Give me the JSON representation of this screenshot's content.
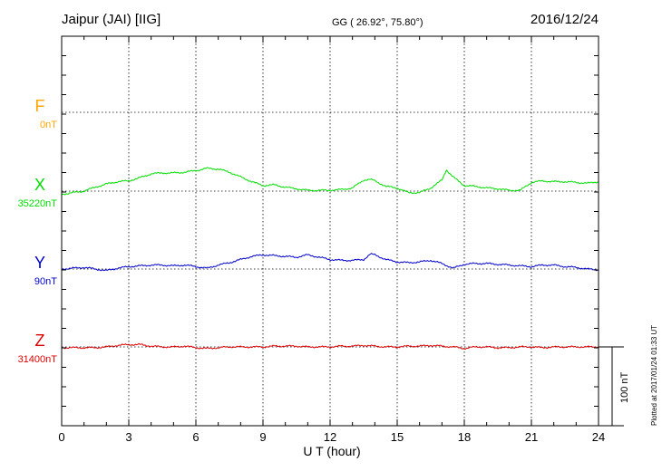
{
  "header": {
    "station": "Jaipur (JAI)  [IIG]",
    "coords": "GG ( 26.92°,  75.80°)",
    "date": "2016/12/24"
  },
  "footer": {
    "plotted": "Plotted at 2017/01/24 01:33 UT"
  },
  "scale_bar": {
    "label": "100 nT",
    "value_nT": 100
  },
  "chart_data": {
    "type": "line",
    "title": "Jaipur (JAI)  [IIG]",
    "xlabel": "U T (hour)",
    "xlim": [
      0,
      24
    ],
    "x_ticks": [
      0,
      3,
      6,
      9,
      12,
      15,
      18,
      21,
      24
    ],
    "x_tick_labels": [
      "0",
      "3",
      "6",
      "9",
      "12",
      "15",
      "18",
      "21",
      "24"
    ],
    "grid": true,
    "colors": {
      "F": "#ffa500",
      "X": "#00dd00",
      "Y": "#0000cc",
      "Z": "#dd0000"
    },
    "series": [
      {
        "name": "F",
        "baseline": "0nT",
        "baseline_nT": 0,
        "values": []
      },
      {
        "name": "X",
        "baseline": "35220nT",
        "baseline_nT": 35220,
        "x": [
          0,
          0.5,
          1,
          1.5,
          2,
          2.5,
          3,
          3.5,
          4,
          4.5,
          5,
          5.5,
          6,
          6.5,
          7,
          7.5,
          8,
          8.5,
          9,
          9.5,
          10,
          10.5,
          11,
          11.5,
          12,
          12.5,
          13,
          13.5,
          13.8,
          14,
          14.5,
          15,
          15.5,
          16,
          16.5,
          17,
          17.2,
          17.5,
          18,
          18.5,
          19,
          19.5,
          20,
          20.5,
          21,
          21.5,
          22,
          22.5,
          23,
          23.5,
          24
        ],
        "values": [
          -4,
          -2,
          0,
          5,
          9,
          12,
          13,
          17,
          22,
          23,
          23,
          24,
          26,
          29,
          28,
          24,
          18,
          12,
          7,
          8,
          5,
          3,
          1,
          1,
          1,
          2,
          4,
          14,
          15,
          13,
          6,
          4,
          -2,
          -2,
          4,
          14,
          27,
          18,
          7,
          6,
          4,
          3,
          1,
          1,
          11,
          13,
          12,
          12,
          11,
          10,
          12
        ]
      },
      {
        "name": "Y",
        "baseline": "90nT",
        "baseline_nT": 90,
        "x": [
          0,
          0.5,
          1,
          1.5,
          2,
          2.5,
          3,
          3.5,
          4,
          4.5,
          5,
          5.5,
          6,
          6.5,
          7,
          7.5,
          8,
          8.5,
          9,
          9.5,
          10,
          10.5,
          11,
          11.5,
          12,
          12.5,
          13,
          13.5,
          13.8,
          14,
          14.5,
          15,
          15.5,
          16,
          16.5,
          17,
          17.5,
          18,
          18.5,
          19,
          19.5,
          20,
          20.5,
          21,
          21.5,
          22,
          22.5,
          23,
          23.5,
          24
        ],
        "values": [
          0,
          1,
          2,
          0,
          -2,
          1,
          3,
          4,
          5,
          5,
          4,
          5,
          3,
          1,
          5,
          8,
          12,
          16,
          18,
          17,
          16,
          15,
          18,
          15,
          12,
          11,
          11,
          12,
          19,
          18,
          12,
          9,
          8,
          9,
          11,
          7,
          1,
          6,
          7,
          7,
          6,
          5,
          4,
          3,
          5,
          5,
          3,
          2,
          0,
          -1
        ]
      },
      {
        "name": "Z",
        "baseline": "31400nT",
        "baseline_nT": 31400,
        "x": [
          0,
          0.5,
          1,
          1.5,
          2,
          2.5,
          3,
          3.5,
          4,
          4.5,
          5,
          5.5,
          6,
          6.5,
          7,
          7.5,
          8,
          8.5,
          9,
          9.5,
          10,
          10.5,
          11,
          11.5,
          12,
          12.5,
          13,
          13.5,
          14,
          14.5,
          15,
          15.5,
          16,
          16.5,
          17,
          17.5,
          18,
          18.5,
          19,
          19.5,
          20,
          20.5,
          21,
          21.5,
          22,
          22.5,
          23,
          23.5,
          24
        ],
        "values": [
          -1,
          -1,
          -1,
          -1,
          0,
          2,
          3,
          3,
          1,
          0,
          0,
          1,
          -1,
          -2,
          -1,
          0,
          0,
          0,
          0,
          1,
          1,
          1,
          0,
          0,
          0,
          1,
          1,
          2,
          1,
          0,
          0,
          1,
          1,
          2,
          1,
          0,
          -2,
          0,
          0,
          -1,
          -1,
          0,
          0,
          -1,
          0,
          0,
          0,
          0,
          0
        ]
      }
    ]
  }
}
